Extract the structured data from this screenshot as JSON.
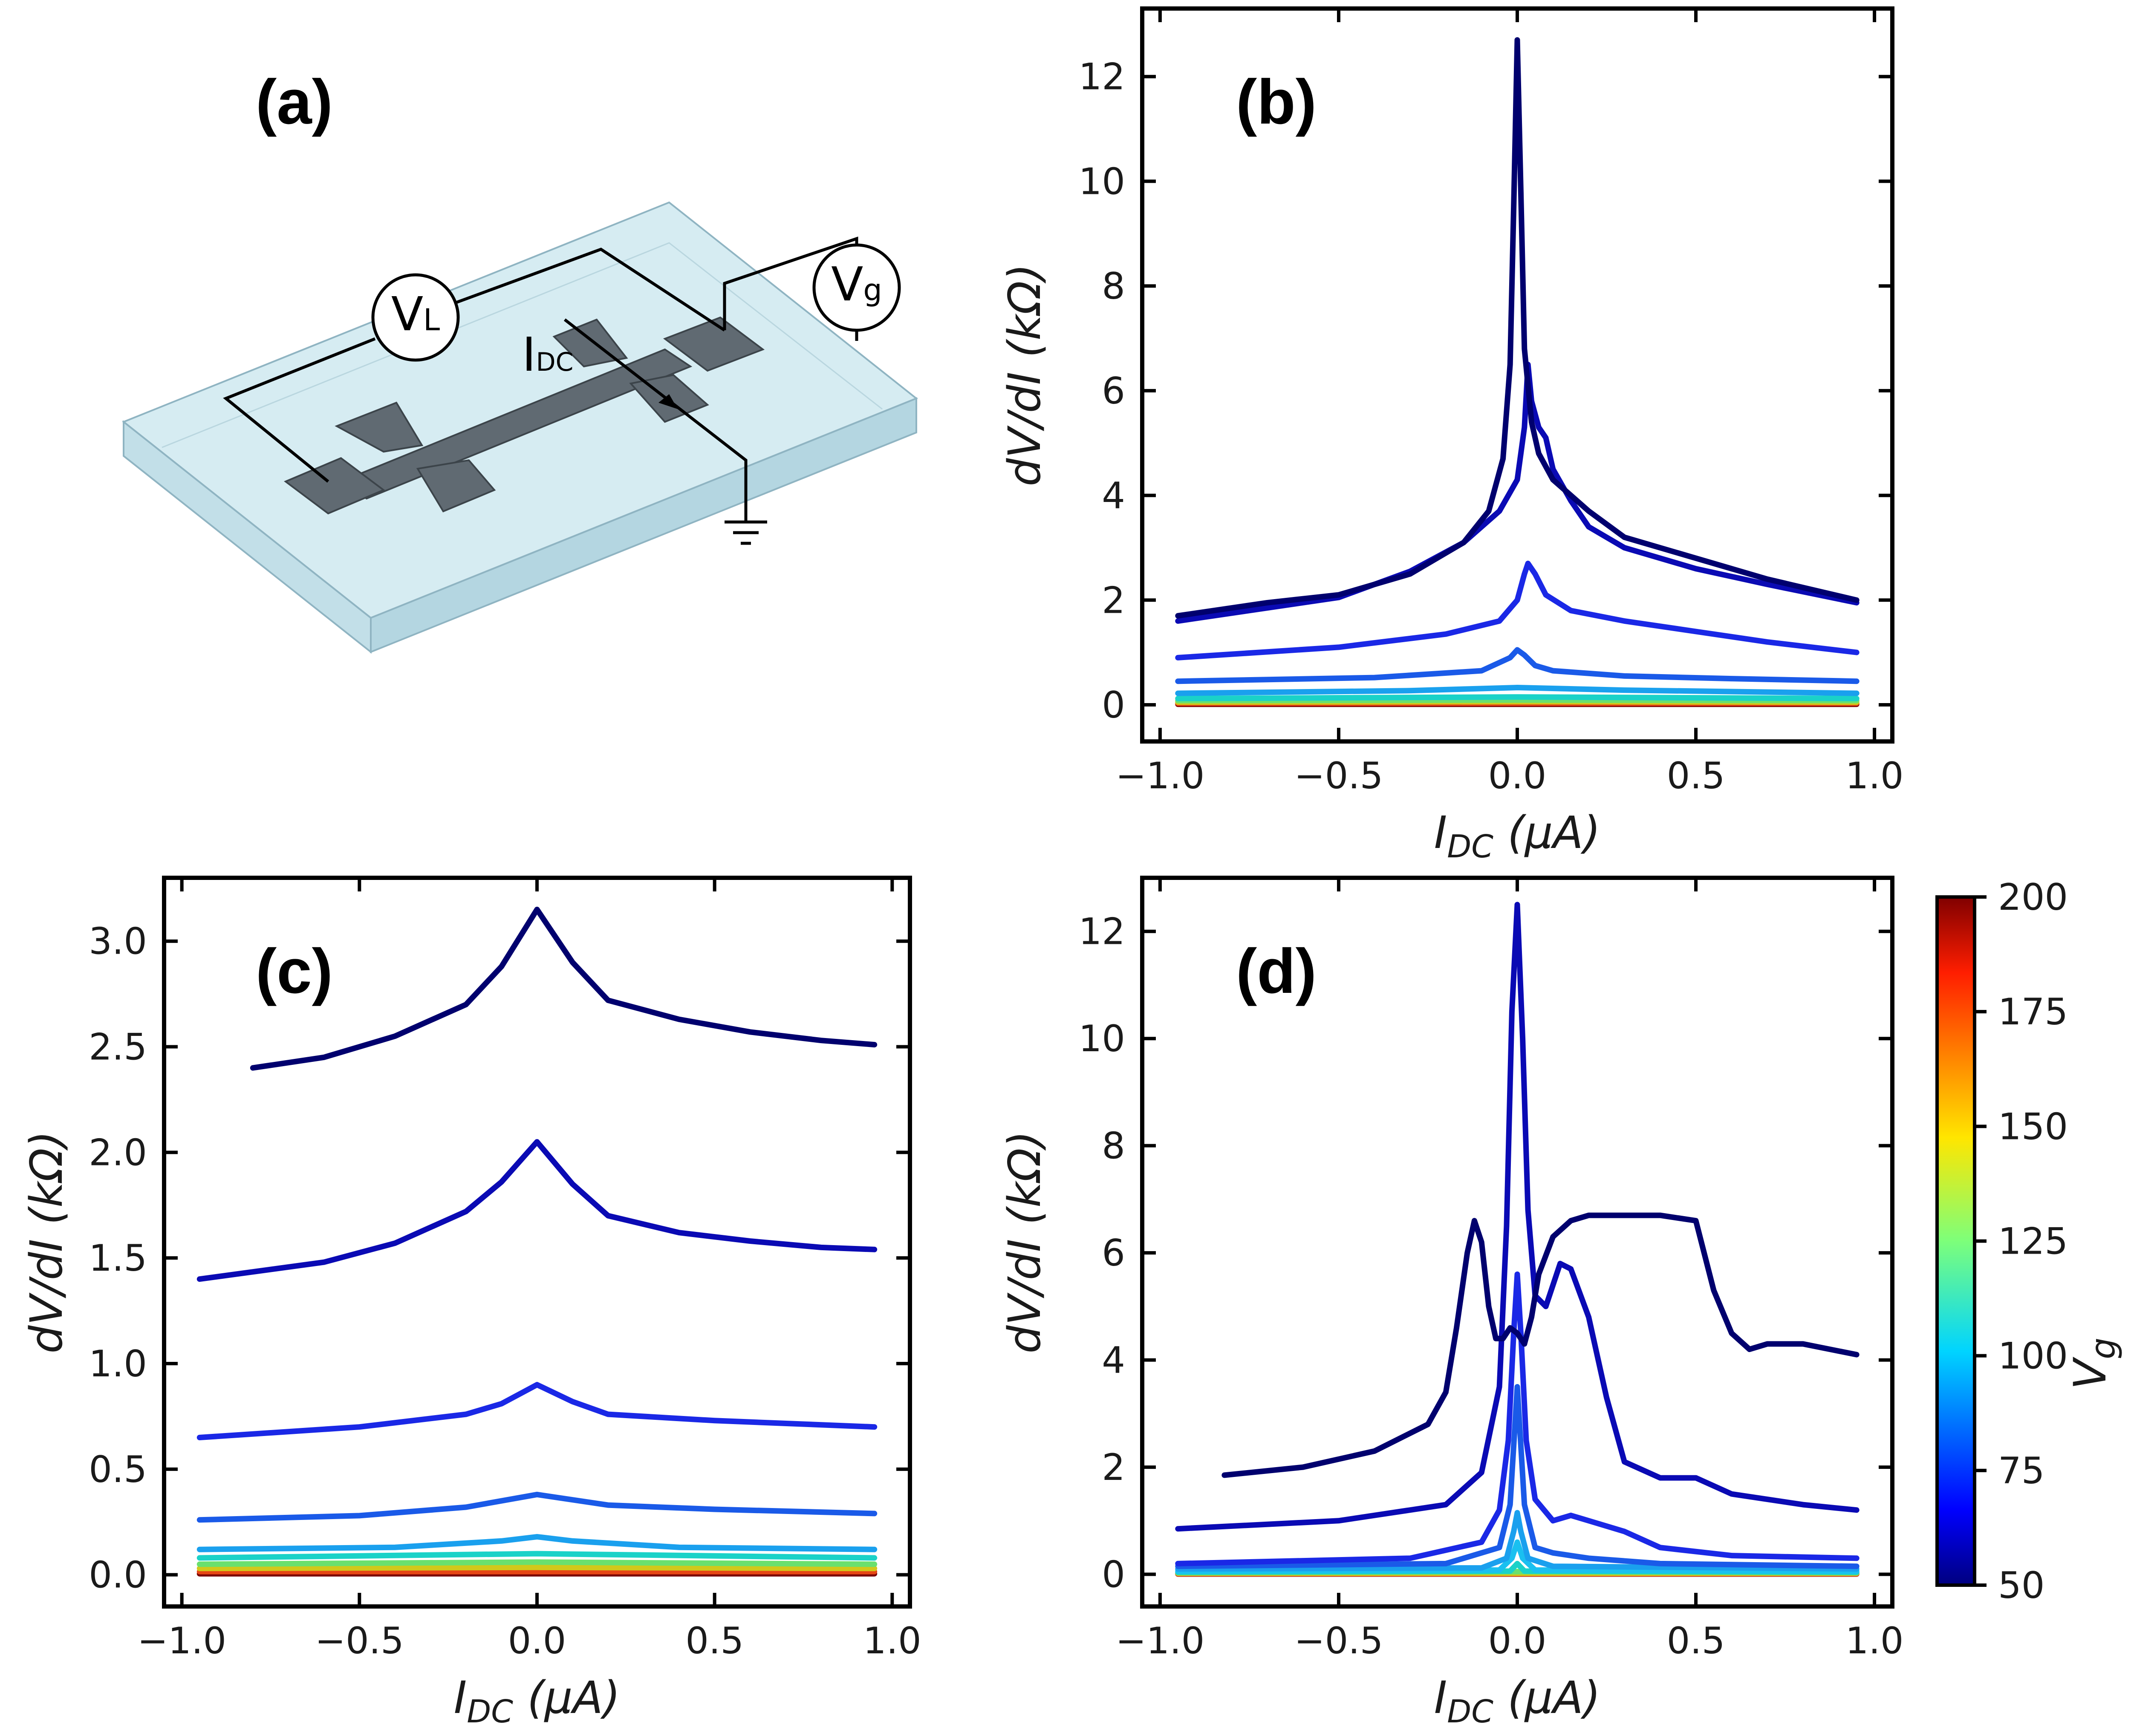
{
  "figure": {
    "panel_a": {
      "label": "(a)",
      "voltmeter_L": {
        "main": "V",
        "sub": "L"
      },
      "voltmeter_g": {
        "main": "V",
        "sub": "g"
      },
      "current_label": {
        "main": "I",
        "sub": "DC"
      }
    },
    "colorbar": {
      "label_main": "V",
      "label_sub": "g",
      "ticks": [
        50,
        75,
        100,
        125,
        150,
        175,
        200
      ],
      "range": [
        50,
        200
      ]
    },
    "axis_text": {
      "xlabel_main": "I",
      "xlabel_sub": "DC",
      "xlabel_unit": " (μA)",
      "ylabel": "dV/dI (kΩ)"
    }
  },
  "chart_data": [
    {
      "id": "b",
      "type": "line",
      "title": "(b)",
      "xlabel": "I_DC (μA)",
      "ylabel": "dV/dI (kΩ)",
      "xlim": [
        -1.05,
        1.05
      ],
      "ylim": [
        -0.7,
        13.3
      ],
      "xticks": [
        -1.0,
        -0.5,
        0.0,
        0.5,
        1.0
      ],
      "xtick_labels": [
        "−1.0",
        "−0.5",
        "0.0",
        "0.5",
        "1.0"
      ],
      "yticks": [
        0,
        2,
        4,
        6,
        8,
        10,
        12
      ],
      "ytick_labels": [
        "0",
        "2",
        "4",
        "6",
        "8",
        "10",
        "12"
      ],
      "series": [
        {
          "name": "Vg=50",
          "color": "#00006e",
          "x": [
            -0.95,
            -0.7,
            -0.5,
            -0.3,
            -0.15,
            -0.08,
            -0.04,
            -0.02,
            -0.01,
            0.0,
            0.01,
            0.02,
            0.04,
            0.06,
            0.1,
            0.2,
            0.3,
            0.5,
            0.7,
            0.95
          ],
          "y": [
            1.7,
            1.95,
            2.1,
            2.5,
            3.1,
            3.7,
            4.7,
            6.5,
            9.5,
            12.7,
            9.8,
            6.8,
            5.4,
            4.8,
            4.3,
            3.7,
            3.2,
            2.8,
            2.4,
            2.0
          ]
        },
        {
          "name": "Vg=60",
          "color": "#0a0ab4",
          "x": [
            -0.95,
            -0.5,
            -0.3,
            -0.15,
            -0.05,
            0.0,
            0.02,
            0.03,
            0.04,
            0.06,
            0.08,
            0.1,
            0.15,
            0.2,
            0.3,
            0.5,
            0.7,
            0.95
          ],
          "y": [
            1.6,
            2.05,
            2.55,
            3.1,
            3.7,
            4.3,
            5.3,
            6.5,
            5.8,
            5.3,
            5.1,
            4.5,
            3.9,
            3.4,
            3.0,
            2.6,
            2.3,
            1.95
          ]
        },
        {
          "name": "Vg=70",
          "color": "#1a28e6",
          "x": [
            -0.95,
            -0.5,
            -0.2,
            -0.05,
            0.0,
            0.02,
            0.03,
            0.05,
            0.08,
            0.15,
            0.3,
            0.5,
            0.7,
            0.95
          ],
          "y": [
            0.9,
            1.1,
            1.35,
            1.6,
            2.0,
            2.5,
            2.7,
            2.5,
            2.1,
            1.8,
            1.6,
            1.4,
            1.2,
            1.0
          ]
        },
        {
          "name": "Vg=80",
          "color": "#1a5ae8",
          "x": [
            -0.95,
            -0.4,
            -0.1,
            -0.02,
            0.0,
            0.02,
            0.05,
            0.1,
            0.3,
            0.6,
            0.95
          ],
          "y": [
            0.45,
            0.52,
            0.65,
            0.9,
            1.05,
            0.95,
            0.75,
            0.65,
            0.55,
            0.5,
            0.45
          ]
        },
        {
          "name": "Vg=90",
          "color": "#1aa0ee",
          "x": [
            -0.95,
            -0.3,
            0.0,
            0.3,
            0.95
          ],
          "y": [
            0.22,
            0.27,
            0.33,
            0.28,
            0.22
          ]
        },
        {
          "name": "Vg=110",
          "color": "#1ad2c8",
          "x": [
            -0.95,
            0.0,
            0.95
          ],
          "y": [
            0.12,
            0.15,
            0.12
          ]
        },
        {
          "name": "Vg=130",
          "color": "#6ae06e",
          "x": [
            -0.95,
            0.0,
            0.95
          ],
          "y": [
            0.08,
            0.09,
            0.08
          ]
        },
        {
          "name": "Vg=150",
          "color": "#d2c81a",
          "x": [
            -0.95,
            0.0,
            0.95
          ],
          "y": [
            0.05,
            0.06,
            0.05
          ]
        },
        {
          "name": "Vg=175",
          "color": "#e64614",
          "x": [
            -0.95,
            0.0,
            0.95
          ],
          "y": [
            0.03,
            0.03,
            0.03
          ]
        },
        {
          "name": "Vg=200",
          "color": "#7a0000",
          "x": [
            -0.95,
            0.0,
            0.95
          ],
          "y": [
            0.01,
            0.01,
            0.01
          ]
        }
      ]
    },
    {
      "id": "c",
      "type": "line",
      "title": "(c)",
      "xlabel": "I_DC (μA)",
      "ylabel": "dV/dI (kΩ)",
      "xlim": [
        -1.05,
        1.05
      ],
      "ylim": [
        -0.15,
        3.3
      ],
      "xticks": [
        -1.0,
        -0.5,
        0.0,
        0.5,
        1.0
      ],
      "xtick_labels": [
        "−1.0",
        "−0.5",
        "0.0",
        "0.5",
        "1.0"
      ],
      "yticks": [
        0.0,
        0.5,
        1.0,
        1.5,
        2.0,
        2.5,
        3.0
      ],
      "ytick_labels": [
        "0.0",
        "0.5",
        "1.0",
        "1.5",
        "2.0",
        "2.5",
        "3.0"
      ],
      "series": [
        {
          "name": "Vg=50",
          "color": "#00006e",
          "x": [
            -0.8,
            -0.6,
            -0.4,
            -0.2,
            -0.1,
            0.0,
            0.1,
            0.2,
            0.4,
            0.6,
            0.8,
            0.95
          ],
          "y": [
            2.4,
            2.45,
            2.55,
            2.7,
            2.88,
            3.15,
            2.9,
            2.72,
            2.63,
            2.57,
            2.53,
            2.51
          ]
        },
        {
          "name": "Vg=60",
          "color": "#0a0ab4",
          "x": [
            -0.95,
            -0.6,
            -0.4,
            -0.2,
            -0.1,
            0.0,
            0.1,
            0.2,
            0.4,
            0.6,
            0.8,
            0.95
          ],
          "y": [
            1.4,
            1.48,
            1.57,
            1.72,
            1.86,
            2.05,
            1.85,
            1.7,
            1.62,
            1.58,
            1.55,
            1.54
          ]
        },
        {
          "name": "Vg=70",
          "color": "#1a28e6",
          "x": [
            -0.95,
            -0.5,
            -0.2,
            -0.1,
            0.0,
            0.1,
            0.2,
            0.5,
            0.95
          ],
          "y": [
            0.65,
            0.7,
            0.76,
            0.81,
            0.9,
            0.82,
            0.76,
            0.73,
            0.7
          ]
        },
        {
          "name": "Vg=80",
          "color": "#1a5ae8",
          "x": [
            -0.95,
            -0.5,
            -0.2,
            0.0,
            0.2,
            0.5,
            0.95
          ],
          "y": [
            0.26,
            0.28,
            0.32,
            0.38,
            0.33,
            0.31,
            0.29
          ]
        },
        {
          "name": "Vg=90",
          "color": "#1aa0ee",
          "x": [
            -0.95,
            -0.4,
            -0.1,
            0.0,
            0.1,
            0.4,
            0.95
          ],
          "y": [
            0.12,
            0.13,
            0.16,
            0.18,
            0.16,
            0.13,
            0.12
          ]
        },
        {
          "name": "Vg=110",
          "color": "#1ad2c8",
          "x": [
            -0.95,
            0.0,
            0.95
          ],
          "y": [
            0.08,
            0.1,
            0.08
          ]
        },
        {
          "name": "Vg=130",
          "color": "#6ae06e",
          "x": [
            -0.95,
            0.0,
            0.95
          ],
          "y": [
            0.05,
            0.06,
            0.05
          ]
        },
        {
          "name": "Vg=150",
          "color": "#d2c81a",
          "x": [
            -0.95,
            0.0,
            0.95
          ],
          "y": [
            0.03,
            0.035,
            0.03
          ]
        },
        {
          "name": "Vg=175",
          "color": "#e64614",
          "x": [
            -0.95,
            0.0,
            0.95
          ],
          "y": [
            0.015,
            0.015,
            0.015
          ]
        },
        {
          "name": "Vg=200",
          "color": "#7a0000",
          "x": [
            -0.95,
            0.0,
            0.95
          ],
          "y": [
            0.005,
            0.005,
            0.005
          ]
        }
      ]
    },
    {
      "id": "d",
      "type": "line",
      "title": "(d)",
      "xlabel": "I_DC (μA)",
      "ylabel": "dV/dI (kΩ)",
      "xlim": [
        -1.05,
        1.05
      ],
      "ylim": [
        -0.6,
        13.0
      ],
      "xticks": [
        -1.0,
        -0.5,
        0.0,
        0.5,
        1.0
      ],
      "xtick_labels": [
        "−1.0",
        "−0.5",
        "0.0",
        "0.5",
        "1.0"
      ],
      "yticks": [
        0,
        2,
        4,
        6,
        8,
        10,
        12
      ],
      "ytick_labels": [
        "0",
        "2",
        "4",
        "6",
        "8",
        "10",
        "12"
      ],
      "series": [
        {
          "name": "Vg=50",
          "color": "#00006e",
          "x": [
            -0.82,
            -0.6,
            -0.4,
            -0.25,
            -0.2,
            -0.17,
            -0.14,
            -0.12,
            -0.1,
            -0.08,
            -0.06,
            -0.04,
            -0.02,
            0.0,
            0.02,
            0.04,
            0.06,
            0.1,
            0.15,
            0.2,
            0.3,
            0.4,
            0.5,
            0.55,
            0.6,
            0.65,
            0.7,
            0.8,
            0.95
          ],
          "y": [
            1.85,
            2.0,
            2.3,
            2.8,
            3.4,
            4.6,
            6.0,
            6.6,
            6.2,
            5.0,
            4.4,
            4.4,
            4.6,
            4.5,
            4.3,
            4.8,
            5.6,
            6.3,
            6.6,
            6.7,
            6.7,
            6.7,
            6.6,
            5.3,
            4.5,
            4.2,
            4.3,
            4.3,
            4.1
          ]
        },
        {
          "name": "Vg=60",
          "color": "#0a0ab4",
          "x": [
            -0.95,
            -0.5,
            -0.2,
            -0.1,
            -0.05,
            -0.03,
            -0.015,
            0.0,
            0.015,
            0.03,
            0.05,
            0.08,
            0.12,
            0.15,
            0.2,
            0.25,
            0.3,
            0.4,
            0.5,
            0.6,
            0.8,
            0.95
          ],
          "y": [
            0.85,
            1.0,
            1.3,
            1.9,
            3.5,
            6.5,
            10.5,
            12.5,
            10.0,
            6.8,
            5.2,
            5.0,
            5.8,
            5.7,
            4.8,
            3.3,
            2.1,
            1.8,
            1.8,
            1.5,
            1.3,
            1.2
          ]
        },
        {
          "name": "Vg=70",
          "color": "#1a28e6",
          "x": [
            -0.95,
            -0.3,
            -0.1,
            -0.05,
            -0.025,
            -0.01,
            0.0,
            0.01,
            0.025,
            0.05,
            0.1,
            0.15,
            0.2,
            0.3,
            0.4,
            0.6,
            0.95
          ],
          "y": [
            0.2,
            0.3,
            0.6,
            1.2,
            2.5,
            4.5,
            5.6,
            4.5,
            2.5,
            1.4,
            1.0,
            1.1,
            1.0,
            0.8,
            0.5,
            0.35,
            0.3
          ]
        },
        {
          "name": "Vg=80",
          "color": "#1a5ae8",
          "x": [
            -0.95,
            -0.2,
            -0.05,
            -0.02,
            0.0,
            0.02,
            0.05,
            0.1,
            0.2,
            0.4,
            0.95
          ],
          "y": [
            0.15,
            0.2,
            0.5,
            1.3,
            3.5,
            1.3,
            0.5,
            0.4,
            0.3,
            0.2,
            0.15
          ]
        },
        {
          "name": "Vg=90",
          "color": "#1aa0ee",
          "x": [
            -0.95,
            -0.1,
            -0.03,
            -0.01,
            0.0,
            0.01,
            0.03,
            0.1,
            0.95
          ],
          "y": [
            0.1,
            0.12,
            0.3,
            0.8,
            1.15,
            0.8,
            0.3,
            0.15,
            0.1
          ]
        },
        {
          "name": "Vg=100",
          "color": "#1ac0f0",
          "x": [
            -0.95,
            -0.05,
            -0.015,
            0.0,
            0.015,
            0.05,
            0.95
          ],
          "y": [
            0.06,
            0.08,
            0.3,
            0.6,
            0.3,
            0.08,
            0.06
          ]
        },
        {
          "name": "Vg=120",
          "color": "#1ad2c8",
          "x": [
            -0.95,
            -0.02,
            0.0,
            0.02,
            0.95
          ],
          "y": [
            0.04,
            0.06,
            0.2,
            0.06,
            0.04
          ]
        },
        {
          "name": "Vg=140",
          "color": "#6ae06e",
          "x": [
            -0.95,
            0.0,
            0.95
          ],
          "y": [
            0.03,
            0.05,
            0.03
          ]
        },
        {
          "name": "Vg=160",
          "color": "#d2c81a",
          "x": [
            -0.95,
            0.0,
            0.95
          ],
          "y": [
            0.02,
            0.02,
            0.02
          ]
        },
        {
          "name": "Vg=180",
          "color": "#e64614",
          "x": [
            -0.95,
            0.0,
            0.95
          ],
          "y": [
            0.01,
            0.01,
            0.01
          ]
        },
        {
          "name": "Vg=200",
          "color": "#7a0000",
          "x": [
            -0.95,
            0.0,
            0.95
          ],
          "y": [
            0.005,
            0.005,
            0.005
          ]
        }
      ]
    }
  ]
}
